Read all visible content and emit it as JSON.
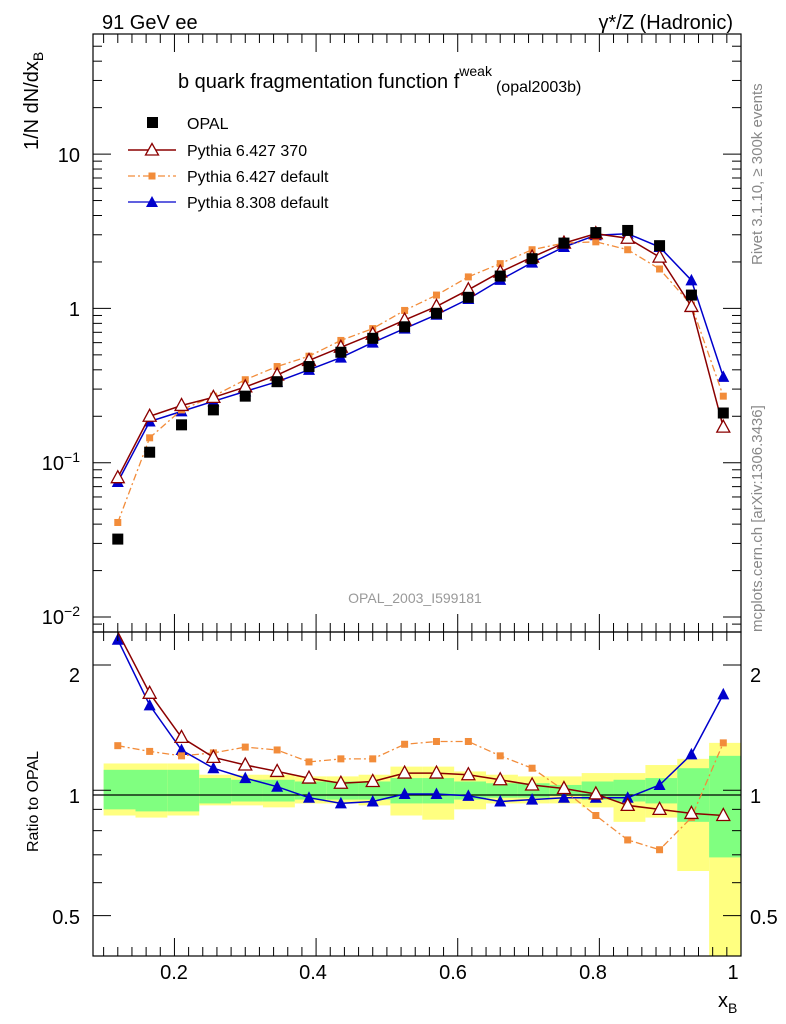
{
  "header": {
    "left": "91 GeV ee",
    "right": "γ*/Z (Hadronic)"
  },
  "side_labels": {
    "rivet": "Rivet 3.1.10, ≥ 300k events",
    "mcplots": "mcplots.cern.ch [arXiv:1306.3436]"
  },
  "watermark": "OPAL_2003_I599181",
  "chart_data": [
    {
      "type": "scatter",
      "panel": "main",
      "title": {
        "main": "b quark fragmentation function f",
        "superscript": "weak",
        "suffix": "(opal2003b)"
      },
      "ylabel": {
        "main": "1/N dN/dx",
        "subscript": "B"
      },
      "yscale": "log",
      "ylim": [
        0.008,
        60
      ],
      "xlim": [
        0.085,
        1.0
      ],
      "y_tick_labels": {
        "t001": {
          "base": "10",
          "exp": "−2"
        },
        "t01": {
          "base": "10",
          "exp": "−1"
        },
        "t1": "1",
        "t10": "10"
      },
      "x": [
        0.12,
        0.165,
        0.21,
        0.255,
        0.3,
        0.345,
        0.39,
        0.435,
        0.48,
        0.525,
        0.57,
        0.615,
        0.66,
        0.705,
        0.75,
        0.795,
        0.84,
        0.885,
        0.93,
        0.975
      ],
      "legend": {
        "placement": "top-left"
      },
      "series": [
        {
          "name": "OPAL",
          "color": "#000000",
          "marker": "square",
          "line": "none",
          "values": [
            0.032,
            0.117,
            0.176,
            0.22,
            0.27,
            0.335,
            0.42,
            0.52,
            0.64,
            0.76,
            0.93,
            1.18,
            1.62,
            2.1,
            2.65,
            3.1,
            3.2,
            2.55,
            1.22,
            0.21
          ]
        },
        {
          "name": "Pythia 6.427 370",
          "color": "#8b0000",
          "marker": "open-triangle",
          "line": "solid",
          "values": [
            0.08,
            0.2,
            0.235,
            0.265,
            0.31,
            0.37,
            0.46,
            0.56,
            0.68,
            0.84,
            1.03,
            1.32,
            1.72,
            2.15,
            2.65,
            3.05,
            2.85,
            2.15,
            1.03,
            0.17
          ]
        },
        {
          "name": "Pythia 6.427 default",
          "color": "#f28c3a",
          "marker": "filled-square-small",
          "line": "dashdot",
          "values": [
            0.041,
            0.145,
            0.22,
            0.27,
            0.345,
            0.42,
            0.49,
            0.62,
            0.74,
            0.97,
            1.22,
            1.6,
            1.95,
            2.4,
            2.65,
            2.7,
            2.4,
            1.8,
            1.05,
            0.27
          ]
        },
        {
          "name": "Pythia 8.308 default",
          "color": "#0000cc",
          "marker": "filled-triangle",
          "line": "solid",
          "values": [
            0.075,
            0.185,
            0.215,
            0.25,
            0.29,
            0.335,
            0.4,
            0.48,
            0.6,
            0.74,
            0.91,
            1.15,
            1.53,
            1.98,
            2.5,
            2.98,
            3.05,
            2.5,
            1.52,
            0.36
          ]
        }
      ]
    },
    {
      "type": "scatter",
      "panel": "ratio",
      "ylabel": "Ratio to OPAL",
      "xlabel": {
        "main": "x",
        "subscript": "B"
      },
      "yscale": "log",
      "ylim": [
        0.4,
        2.4
      ],
      "xlim": [
        0.085,
        1.0
      ],
      "y_tick_labels": {
        "t05": "0.5",
        "t1": "1",
        "t2": "2"
      },
      "x_tick_labels": {
        "t02": "0.2",
        "t04": "0.4",
        "t06": "0.6",
        "t08": "0.8",
        "t1": "1"
      },
      "bin_edges": [
        0.1,
        0.145,
        0.19,
        0.235,
        0.28,
        0.325,
        0.37,
        0.415,
        0.46,
        0.505,
        0.55,
        0.595,
        0.64,
        0.685,
        0.73,
        0.775,
        0.82,
        0.865,
        0.91,
        0.955,
        1.0
      ],
      "band_colors": {
        "inner": "#80ff80",
        "outer": "#ffff80"
      },
      "band_inner": [
        [
          0.9,
          1.12
        ],
        [
          0.89,
          1.12
        ],
        [
          0.89,
          1.12
        ],
        [
          0.93,
          1.07
        ],
        [
          0.94,
          1.06
        ],
        [
          0.94,
          1.06
        ],
        [
          0.95,
          1.05
        ],
        [
          0.95,
          1.05
        ],
        [
          0.95,
          1.05
        ],
        [
          0.93,
          1.07
        ],
        [
          0.93,
          1.07
        ],
        [
          0.95,
          1.05
        ],
        [
          0.96,
          1.04
        ],
        [
          0.96,
          1.04
        ],
        [
          0.97,
          1.03
        ],
        [
          0.95,
          1.05
        ],
        [
          0.94,
          1.06
        ],
        [
          0.93,
          1.07
        ],
        [
          0.84,
          1.13
        ],
        [
          0.69,
          1.21
        ]
      ],
      "band_outer": [
        [
          0.87,
          1.16
        ],
        [
          0.86,
          1.16
        ],
        [
          0.87,
          1.16
        ],
        [
          0.92,
          1.09
        ],
        [
          0.92,
          1.09
        ],
        [
          0.91,
          1.09
        ],
        [
          0.93,
          1.08
        ],
        [
          0.93,
          1.08
        ],
        [
          0.92,
          1.09
        ],
        [
          0.87,
          1.14
        ],
        [
          0.85,
          1.14
        ],
        [
          0.9,
          1.11
        ],
        [
          0.93,
          1.09
        ],
        [
          0.93,
          1.08
        ],
        [
          0.93,
          1.08
        ],
        [
          0.91,
          1.1
        ],
        [
          0.84,
          1.1
        ],
        [
          0.86,
          1.15
        ],
        [
          0.64,
          1.19
        ],
        [
          0.36,
          1.3
        ]
      ],
      "series": [
        {
          "name": "Pythia 6.427 370",
          "color": "#8b0000",
          "marker": "open-triangle",
          "line": "solid",
          "values": [
            2.5,
            1.71,
            1.34,
            1.2,
            1.15,
            1.11,
            1.07,
            1.04,
            1.05,
            1.1,
            1.1,
            1.09,
            1.06,
            1.03,
            1.01,
            0.98,
            0.92,
            0.9,
            0.88,
            0.87
          ]
        },
        {
          "name": "Pythia 6.427 default",
          "color": "#f28c3a",
          "marker": "filled-square-small",
          "line": "dashdot",
          "values": [
            1.28,
            1.24,
            1.21,
            1.23,
            1.27,
            1.25,
            1.17,
            1.19,
            1.19,
            1.29,
            1.31,
            1.31,
            1.21,
            1.13,
            1.0,
            0.87,
            0.76,
            0.72,
            0.86,
            1.3
          ]
        },
        {
          "name": "Pythia 8.308 default",
          "color": "#0000cc",
          "marker": "filled-triangle",
          "line": "solid",
          "values": [
            2.3,
            1.6,
            1.25,
            1.13,
            1.07,
            1.02,
            0.96,
            0.93,
            0.94,
            0.98,
            0.98,
            0.97,
            0.94,
            0.95,
            0.96,
            0.96,
            0.96,
            1.03,
            1.22,
            1.7
          ]
        }
      ]
    }
  ]
}
